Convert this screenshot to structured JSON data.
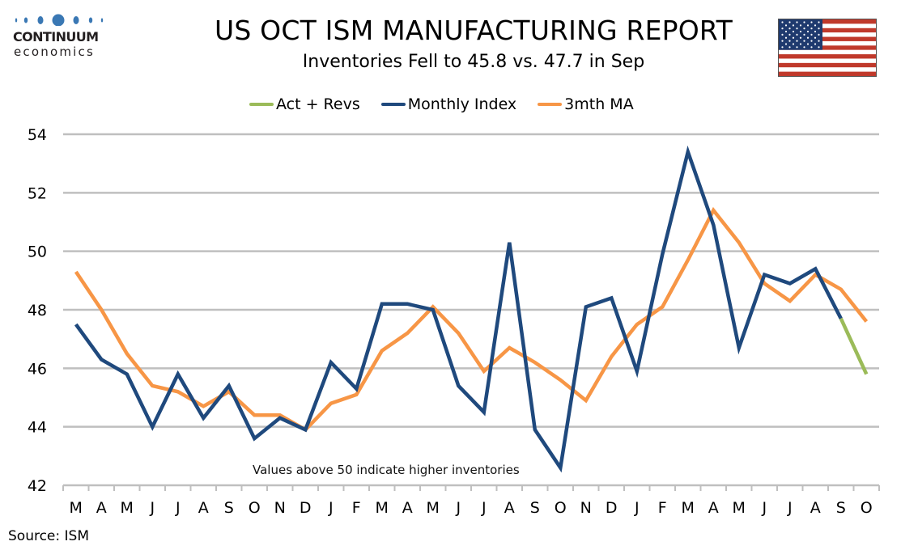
{
  "header": {
    "logo_word": "CONTINUUM",
    "logo_sub": "economics",
    "title": "US OCT ISM MANUFACTURING REPORT",
    "subtitle": "Inventories Fell to 45.8 vs. 47.7 in Sep",
    "flag_icon": "us-flag-icon"
  },
  "footer": {
    "source": "Source: ISM"
  },
  "colors": {
    "act_revs": "#9bbb59",
    "monthly": "#1f497d",
    "ma": "#f79646",
    "grid": "#bfbfbf",
    "logo_blue": "#3a78b4",
    "flag_red": "#c0392b",
    "flag_blue": "#1f3a6e"
  },
  "chart_data": {
    "type": "line",
    "title": "US OCT ISM MANUFACTURING REPORT",
    "subtitle": "Inventories Fell to 45.8 vs. 47.7 in Sep",
    "xlabel": "",
    "ylabel": "",
    "ylim": [
      42,
      54
    ],
    "yticks": [
      42,
      44,
      46,
      48,
      50,
      52,
      54
    ],
    "grid": true,
    "legend_position": "top-center",
    "annotation": "Values above 50 indicate higher inventories",
    "categories": [
      "M",
      "A",
      "M",
      "J",
      "J",
      "A",
      "S",
      "O",
      "N",
      "D",
      "J",
      "F",
      "M",
      "A",
      "M",
      "J",
      "J",
      "A",
      "S",
      "O",
      "N",
      "D",
      "J",
      "F",
      "M",
      "A",
      "M",
      "J",
      "J",
      "A",
      "S",
      "O"
    ],
    "series": [
      {
        "name": "Act + Revs",
        "color": "#9bbb59",
        "values": [
          null,
          null,
          null,
          null,
          null,
          null,
          null,
          null,
          null,
          null,
          null,
          null,
          null,
          null,
          null,
          null,
          null,
          null,
          null,
          null,
          null,
          null,
          null,
          null,
          null,
          null,
          null,
          null,
          null,
          null,
          47.7,
          45.8
        ]
      },
      {
        "name": "Monthly Index",
        "color": "#1f497d",
        "values": [
          47.5,
          46.3,
          45.8,
          44.0,
          45.8,
          44.3,
          45.4,
          43.6,
          44.3,
          43.9,
          46.2,
          45.3,
          48.2,
          48.2,
          48.0,
          45.4,
          44.5,
          50.3,
          43.9,
          42.6,
          48.1,
          48.4,
          45.9,
          49.9,
          53.4,
          50.9,
          46.7,
          49.2,
          48.9,
          49.4,
          47.7,
          null
        ]
      },
      {
        "name": "3mth MA",
        "color": "#f79646",
        "values": [
          49.3,
          48.0,
          46.5,
          45.4,
          45.2,
          44.7,
          45.2,
          44.4,
          44.4,
          43.9,
          44.8,
          45.1,
          46.6,
          47.2,
          48.1,
          47.2,
          45.9,
          46.7,
          46.2,
          45.6,
          44.9,
          46.4,
          47.5,
          48.1,
          49.7,
          51.4,
          50.3,
          48.9,
          48.3,
          49.2,
          48.7,
          47.6
        ]
      }
    ]
  }
}
